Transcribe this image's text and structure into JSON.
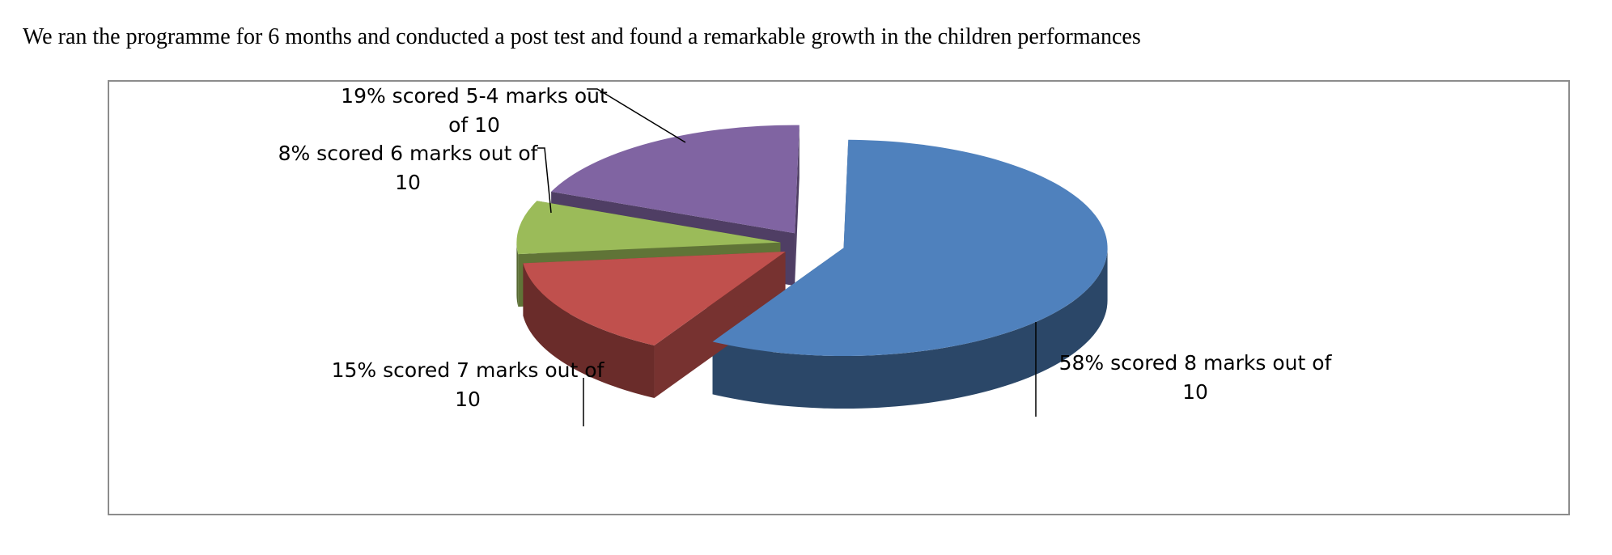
{
  "intro_text": "We ran the programme for 6 months and conducted a post test and found a remarkable growth in the children performances",
  "chart_data": {
    "type": "pie",
    "style": "3d-exploded",
    "title": "",
    "legend": "none",
    "slices": [
      {
        "label_lines": [
          "58% scored 8 marks out of",
          "10"
        ],
        "value": 58,
        "color": "#4f81bd"
      },
      {
        "label_lines": [
          "15% scored 7 marks out of",
          "10"
        ],
        "value": 15,
        "color": "#c0504d"
      },
      {
        "label_lines": [
          "8% scored 6 marks out of",
          "10"
        ],
        "value": 8,
        "color": "#9bbb59"
      },
      {
        "label_lines": [
          "19%  scored 5-4 marks out",
          "of 10"
        ],
        "value": 19,
        "color": "#8064a2"
      }
    ]
  }
}
